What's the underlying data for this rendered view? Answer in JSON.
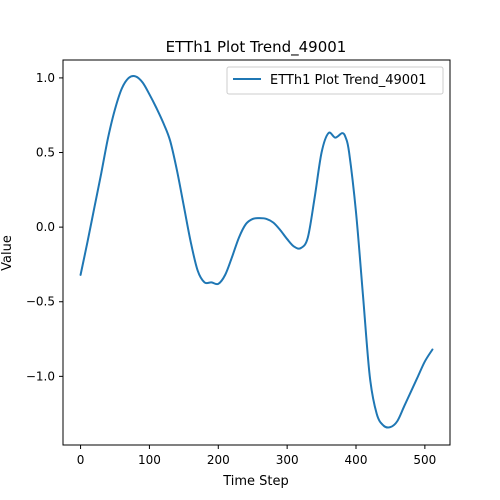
{
  "chart_data": {
    "type": "line",
    "title": "ETTh1 Plot Trend_49001",
    "xlabel": "Time Step",
    "ylabel": "Value",
    "xlim": [
      -25.5,
      536.5
    ],
    "ylim": [
      -1.46,
      1.12
    ],
    "xticks": [
      0,
      100,
      200,
      300,
      400,
      500
    ],
    "xtick_labels": [
      "0",
      "100",
      "200",
      "300",
      "400",
      "500"
    ],
    "yticks": [
      -1.0,
      -0.5,
      0.0,
      0.5,
      1.0
    ],
    "ytick_labels": [
      "−1.0",
      "−0.5",
      "0.0",
      "0.5",
      "1.0"
    ],
    "grid": false,
    "legend_position": "upper right",
    "series": [
      {
        "name": "ETTh1 Plot Trend_49001",
        "color": "#1f77b4",
        "x": [
          0,
          10,
          20,
          30,
          40,
          50,
          60,
          70,
          80,
          90,
          100,
          110,
          120,
          130,
          140,
          150,
          160,
          170,
          180,
          190,
          200,
          210,
          220,
          230,
          240,
          250,
          260,
          270,
          280,
          290,
          300,
          310,
          320,
          330,
          340,
          350,
          360,
          370,
          380,
          385,
          390,
          400,
          410,
          420,
          430,
          440,
          450,
          460,
          470,
          480,
          490,
          500,
          511
        ],
        "y": [
          -0.32,
          -0.1,
          0.13,
          0.36,
          0.6,
          0.79,
          0.93,
          1.0,
          1.01,
          0.97,
          0.89,
          0.8,
          0.7,
          0.58,
          0.38,
          0.14,
          -0.1,
          -0.29,
          -0.37,
          -0.37,
          -0.38,
          -0.32,
          -0.2,
          -0.07,
          0.02,
          0.055,
          0.06,
          0.055,
          0.03,
          -0.02,
          -0.08,
          -0.13,
          -0.14,
          -0.07,
          0.2,
          0.5,
          0.63,
          0.6,
          0.63,
          0.6,
          0.5,
          0.1,
          -0.45,
          -1.0,
          -1.25,
          -1.33,
          -1.34,
          -1.3,
          -1.2,
          -1.1,
          -1.0,
          -0.9,
          -0.82
        ]
      }
    ]
  }
}
